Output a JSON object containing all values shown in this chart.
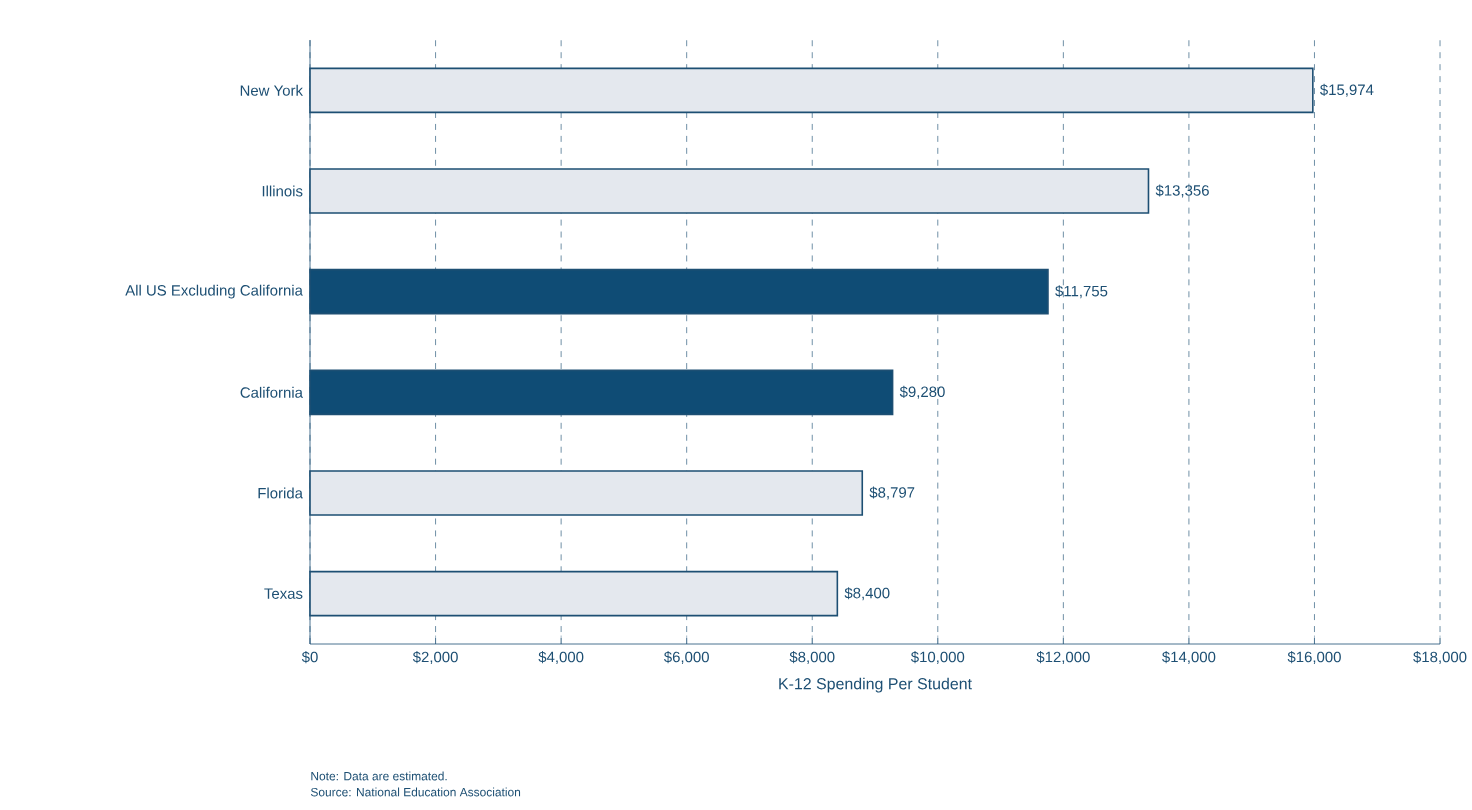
{
  "chart_data": {
    "type": "bar",
    "orientation": "horizontal",
    "categories": [
      "New York",
      "Illinois",
      "All US Excluding California",
      "California",
      "Florida",
      "Texas"
    ],
    "values": [
      15974,
      13356,
      11755,
      9280,
      8797,
      8400
    ],
    "value_labels": [
      "$15,974",
      "$13,356",
      "$11,755",
      "$9,280",
      "$8,797",
      "$8,400"
    ],
    "colors": [
      "#e4e8ee",
      "#e4e8ee",
      "#0f4c75",
      "#0f4c75",
      "#e4e8ee",
      "#e4e8ee"
    ],
    "xlabel": "K-12 Spending Per Student",
    "xlim": [
      0,
      18000
    ],
    "xticks": [
      {
        "value": 0,
        "label": "$0"
      },
      {
        "value": 2000,
        "label": "$2,000"
      },
      {
        "value": 4000,
        "label": "$4,000"
      },
      {
        "value": 6000,
        "label": "$6,000"
      },
      {
        "value": 8000,
        "label": "$8,000"
      },
      {
        "value": 10000,
        "label": "$10,000"
      },
      {
        "value": 12000,
        "label": "$12,000"
      },
      {
        "value": 14000,
        "label": "$14,000"
      },
      {
        "value": 16000,
        "label": "$16,000"
      },
      {
        "value": 18000,
        "label": "$18,000"
      }
    ],
    "grid": "x",
    "annotations": [
      "Note: Data are estimated.",
      "Source: National Education Association"
    ]
  }
}
